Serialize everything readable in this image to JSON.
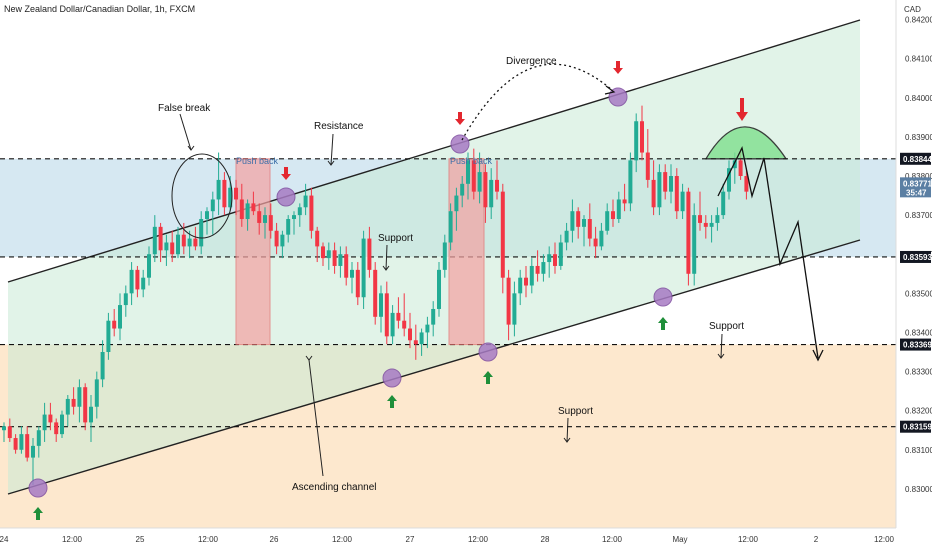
{
  "header": {
    "symbol_title": "New Zealand Dollar/Canadian Dollar, 1h, FXCM"
  },
  "chart_data": {
    "type": "candlestick",
    "title": "New Zealand Dollar/Canadian Dollar, 1h, FXCM",
    "currency_label": "CAD",
    "y_range": [
      0.829,
      0.8425
    ],
    "y_ticks": [
      "0.84200",
      "0.84100",
      "0.84000",
      "0.83900",
      "0.83800",
      "0.83700",
      "0.83600",
      "0.83500",
      "0.83400",
      "0.83300",
      "0.83200",
      "0.83100",
      "0.83000"
    ],
    "x_ticks": [
      "24",
      "12:00",
      "25",
      "12:00",
      "26",
      "12:00",
      "27",
      "12:00",
      "28",
      "12:00",
      "May",
      "12:00",
      "2",
      "12:00"
    ],
    "price_levels": [
      {
        "value": 0.83844,
        "label": "0.83844"
      },
      {
        "value": 0.83593,
        "label": "0.83593"
      },
      {
        "value": 0.83369,
        "label": "0.83369"
      },
      {
        "value": 0.83159,
        "label": "0.83159"
      }
    ],
    "current_price": {
      "label": "0.83771",
      "countdown": "35:47"
    },
    "colors": {
      "up": "#22ab94",
      "down": "#f23645",
      "channel_fill": "#c8e9d6",
      "zone_fill": "#b5d6e8",
      "lower_fill": "#fde4c6",
      "marker": "#a77bc4"
    },
    "candles": [
      [
        0.8315,
        0.8317,
        0.8312,
        0.8316
      ],
      [
        0.8316,
        0.8318,
        0.8312,
        0.8313
      ],
      [
        0.8313,
        0.8314,
        0.8309,
        0.831
      ],
      [
        0.831,
        0.8316,
        0.8309,
        0.8314
      ],
      [
        0.8314,
        0.8316,
        0.8307,
        0.8308
      ],
      [
        0.8308,
        0.8313,
        0.8301,
        0.8311
      ],
      [
        0.8311,
        0.8316,
        0.8308,
        0.8315
      ],
      [
        0.8315,
        0.8322,
        0.8312,
        0.8319
      ],
      [
        0.8319,
        0.8322,
        0.8315,
        0.8317
      ],
      [
        0.8317,
        0.8318,
        0.8312,
        0.8314
      ],
      [
        0.8314,
        0.832,
        0.8313,
        0.8319
      ],
      [
        0.8319,
        0.8324,
        0.8316,
        0.8323
      ],
      [
        0.8323,
        0.8326,
        0.8319,
        0.8321
      ],
      [
        0.8321,
        0.8328,
        0.8317,
        0.8326
      ],
      [
        0.8326,
        0.8327,
        0.8315,
        0.8317
      ],
      [
        0.8317,
        0.8324,
        0.8312,
        0.8321
      ],
      [
        0.8321,
        0.833,
        0.8318,
        0.8328
      ],
      [
        0.8328,
        0.8338,
        0.8326,
        0.8335
      ],
      [
        0.8335,
        0.8345,
        0.8333,
        0.8343
      ],
      [
        0.8343,
        0.8346,
        0.8339,
        0.8341
      ],
      [
        0.8341,
        0.835,
        0.8338,
        0.8347
      ],
      [
        0.8347,
        0.8352,
        0.8344,
        0.835
      ],
      [
        0.835,
        0.8358,
        0.8347,
        0.8356
      ],
      [
        0.8356,
        0.8357,
        0.8349,
        0.8351
      ],
      [
        0.8351,
        0.8356,
        0.8349,
        0.8354
      ],
      [
        0.8354,
        0.8362,
        0.8352,
        0.836
      ],
      [
        0.836,
        0.837,
        0.8358,
        0.8367
      ],
      [
        0.8367,
        0.8368,
        0.8358,
        0.8361
      ],
      [
        0.8361,
        0.8365,
        0.8357,
        0.8363
      ],
      [
        0.8363,
        0.8366,
        0.8358,
        0.836
      ],
      [
        0.836,
        0.8367,
        0.8359,
        0.8365
      ],
      [
        0.8365,
        0.8368,
        0.836,
        0.8362
      ],
      [
        0.8362,
        0.8366,
        0.8359,
        0.8364
      ],
      [
        0.8364,
        0.8367,
        0.8361,
        0.8362
      ],
      [
        0.8362,
        0.8371,
        0.836,
        0.8369
      ],
      [
        0.8369,
        0.8372,
        0.8365,
        0.8371
      ],
      [
        0.8371,
        0.8376,
        0.8365,
        0.8374
      ],
      [
        0.8374,
        0.8386,
        0.837,
        0.8379
      ],
      [
        0.8379,
        0.8381,
        0.837,
        0.8372
      ],
      [
        0.8372,
        0.838,
        0.8371,
        0.8377
      ],
      [
        0.8377,
        0.8379,
        0.837,
        0.8374
      ],
      [
        0.8374,
        0.8378,
        0.8367,
        0.8369
      ],
      [
        0.8369,
        0.8374,
        0.8366,
        0.8373
      ],
      [
        0.8373,
        0.8376,
        0.837,
        0.8371
      ],
      [
        0.8371,
        0.8373,
        0.8365,
        0.8368
      ],
      [
        0.8368,
        0.8372,
        0.8364,
        0.837
      ],
      [
        0.837,
        0.8373,
        0.8364,
        0.8366
      ],
      [
        0.8366,
        0.8368,
        0.836,
        0.8362
      ],
      [
        0.8362,
        0.8366,
        0.8359,
        0.8365
      ],
      [
        0.8365,
        0.837,
        0.8363,
        0.8369
      ],
      [
        0.8369,
        0.8371,
        0.8365,
        0.837
      ],
      [
        0.837,
        0.8373,
        0.8367,
        0.8372
      ],
      [
        0.8372,
        0.8378,
        0.837,
        0.8375
      ],
      [
        0.8375,
        0.8377,
        0.8364,
        0.8366
      ],
      [
        0.8366,
        0.8367,
        0.8358,
        0.8362
      ],
      [
        0.8362,
        0.8363,
        0.8357,
        0.8359
      ],
      [
        0.8359,
        0.8363,
        0.8356,
        0.8361
      ],
      [
        0.8361,
        0.8363,
        0.8355,
        0.8357
      ],
      [
        0.8357,
        0.8362,
        0.8354,
        0.836
      ],
      [
        0.836,
        0.8362,
        0.8352,
        0.8354
      ],
      [
        0.8354,
        0.8358,
        0.835,
        0.8356
      ],
      [
        0.8356,
        0.8358,
        0.8347,
        0.8349
      ],
      [
        0.8349,
        0.8366,
        0.8346,
        0.8364
      ],
      [
        0.8364,
        0.8367,
        0.8354,
        0.8356
      ],
      [
        0.8356,
        0.8358,
        0.8342,
        0.8344
      ],
      [
        0.8344,
        0.8352,
        0.834,
        0.835
      ],
      [
        0.835,
        0.8353,
        0.8337,
        0.8339
      ],
      [
        0.8339,
        0.8347,
        0.8337,
        0.8345
      ],
      [
        0.8345,
        0.8349,
        0.8341,
        0.8343
      ],
      [
        0.8343,
        0.835,
        0.8339,
        0.8341
      ],
      [
        0.8341,
        0.8345,
        0.8336,
        0.8338
      ],
      [
        0.8338,
        0.8342,
        0.8333,
        0.8337
      ],
      [
        0.8337,
        0.8341,
        0.8334,
        0.834
      ],
      [
        0.834,
        0.8344,
        0.8336,
        0.8342
      ],
      [
        0.8342,
        0.8348,
        0.8339,
        0.8346
      ],
      [
        0.8346,
        0.8358,
        0.8344,
        0.8356
      ],
      [
        0.8356,
        0.8365,
        0.8354,
        0.8363
      ],
      [
        0.8363,
        0.8373,
        0.8361,
        0.8371
      ],
      [
        0.8371,
        0.8377,
        0.8366,
        0.8375
      ],
      [
        0.8375,
        0.838,
        0.8372,
        0.8378
      ],
      [
        0.8378,
        0.8386,
        0.8374,
        0.8384
      ],
      [
        0.8384,
        0.8387,
        0.8374,
        0.8376
      ],
      [
        0.8376,
        0.8386,
        0.8373,
        0.8381
      ],
      [
        0.8381,
        0.8383,
        0.8368,
        0.8372
      ],
      [
        0.8372,
        0.8382,
        0.8369,
        0.8379
      ],
      [
        0.8379,
        0.8384,
        0.8374,
        0.8376
      ],
      [
        0.8376,
        0.8378,
        0.835,
        0.8354
      ],
      [
        0.8354,
        0.8356,
        0.8338,
        0.8342
      ],
      [
        0.8342,
        0.8353,
        0.8339,
        0.835
      ],
      [
        0.835,
        0.8356,
        0.8347,
        0.8354
      ],
      [
        0.8354,
        0.8357,
        0.8349,
        0.8352
      ],
      [
        0.8352,
        0.8359,
        0.835,
        0.8357
      ],
      [
        0.8357,
        0.8361,
        0.8353,
        0.8355
      ],
      [
        0.8355,
        0.836,
        0.8353,
        0.8358
      ],
      [
        0.8358,
        0.8362,
        0.8354,
        0.836
      ],
      [
        0.836,
        0.8363,
        0.8355,
        0.8357
      ],
      [
        0.8357,
        0.8365,
        0.8356,
        0.8363
      ],
      [
        0.8363,
        0.8368,
        0.8361,
        0.8366
      ],
      [
        0.8366,
        0.8374,
        0.8363,
        0.8371
      ],
      [
        0.8371,
        0.8372,
        0.8364,
        0.8367
      ],
      [
        0.8367,
        0.837,
        0.8362,
        0.8369
      ],
      [
        0.8369,
        0.8373,
        0.8362,
        0.8364
      ],
      [
        0.8364,
        0.8367,
        0.8359,
        0.8362
      ],
      [
        0.8362,
        0.8368,
        0.8361,
        0.8366
      ],
      [
        0.8366,
        0.8373,
        0.8365,
        0.8371
      ],
      [
        0.8371,
        0.8374,
        0.8367,
        0.8369
      ],
      [
        0.8369,
        0.8376,
        0.8368,
        0.8374
      ],
      [
        0.8374,
        0.8378,
        0.8371,
        0.8373
      ],
      [
        0.8373,
        0.8386,
        0.8371,
        0.8384
      ],
      [
        0.8384,
        0.8396,
        0.8381,
        0.8394
      ],
      [
        0.8394,
        0.8398,
        0.8384,
        0.8386
      ],
      [
        0.8386,
        0.8392,
        0.8377,
        0.8379
      ],
      [
        0.8379,
        0.8384,
        0.837,
        0.8372
      ],
      [
        0.8372,
        0.8383,
        0.837,
        0.8381
      ],
      [
        0.8381,
        0.8383,
        0.8374,
        0.8376
      ],
      [
        0.8376,
        0.8383,
        0.8373,
        0.838
      ],
      [
        0.838,
        0.8382,
        0.8369,
        0.8371
      ],
      [
        0.8371,
        0.8378,
        0.8369,
        0.8376
      ],
      [
        0.8376,
        0.8377,
        0.8352,
        0.8355
      ],
      [
        0.8355,
        0.8373,
        0.8352,
        0.837
      ],
      [
        0.837,
        0.8376,
        0.8366,
        0.8368
      ],
      [
        0.8368,
        0.837,
        0.8364,
        0.8367
      ],
      [
        0.8367,
        0.837,
        0.8363,
        0.8368
      ],
      [
        0.8368,
        0.8372,
        0.8366,
        0.837
      ],
      [
        0.837,
        0.8378,
        0.8369,
        0.8376
      ],
      [
        0.8376,
        0.8384,
        0.8374,
        0.8382
      ],
      [
        0.8382,
        0.8386,
        0.8378,
        0.8384
      ],
      [
        0.8384,
        0.8387,
        0.8379,
        0.838
      ],
      [
        0.838,
        0.8382,
        0.8374,
        0.8376
      ]
    ]
  },
  "annotations": {
    "false_break": "False break",
    "resistance": "Resistance",
    "push_back_1": "Push back",
    "push_back_2": "Push back",
    "divergence": "Divergence",
    "support_mid": "Support",
    "support_right": "Support",
    "support_low": "Support",
    "ascending_channel": "Ascending channel"
  }
}
